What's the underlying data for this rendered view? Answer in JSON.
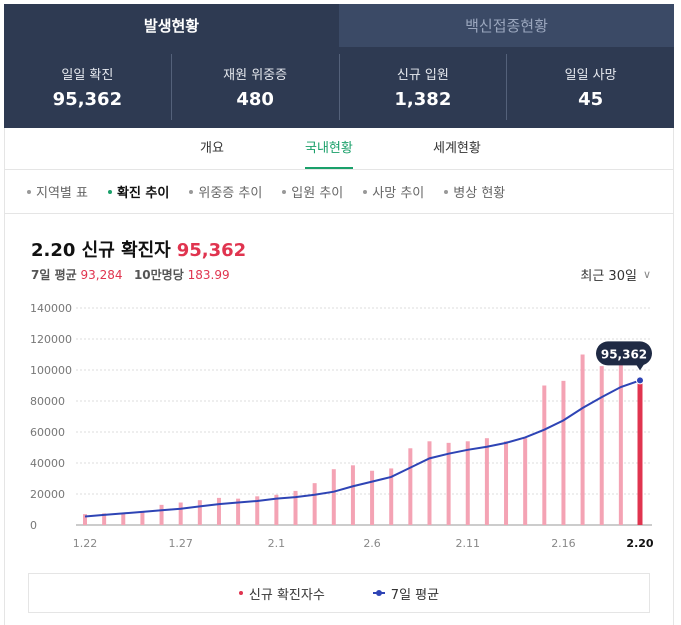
{
  "tabs": {
    "active": "발생현황",
    "inactive": "백신접종현황"
  },
  "stats": [
    {
      "label": "일일 확진",
      "value": "95,362"
    },
    {
      "label": "재원 위중증",
      "value": "480"
    },
    {
      "label": "신규 입원",
      "value": "1,382"
    },
    {
      "label": "일일 사망",
      "value": "45"
    }
  ],
  "subtabs": [
    "개요",
    "국내현황",
    "세계현황"
  ],
  "subtab_active": "국내현황",
  "filters": [
    "지역별 표",
    "확진 추이",
    "위중증 추이",
    "입원 추이",
    "사망 추이",
    "병상 현황"
  ],
  "filter_active": "확진 추이",
  "headline": {
    "title": "2.20 신규 확진자",
    "value": "95,362"
  },
  "subline": {
    "avg_label": "7일 평균",
    "avg_value": "93,284",
    "per_label": "10만명당",
    "per_value": "183.99"
  },
  "period": "최근 30일",
  "tooltip": "95,362",
  "legend": {
    "bar": "신규 확진자수",
    "line": "7일 평균"
  },
  "colors": {
    "bar": "#f4a3b4",
    "bar_last": "#e0344f",
    "line": "#2e44b5",
    "accent_green": "#1aa06a",
    "header_bg": "#2e3a52"
  },
  "chart_data": {
    "type": "bar",
    "dates": [
      "1.22",
      "1.23",
      "1.24",
      "1.25",
      "1.26",
      "1.27",
      "1.28",
      "1.29",
      "1.30",
      "1.31",
      "2.1",
      "2.2",
      "2.3",
      "2.4",
      "2.5",
      "2.6",
      "2.7",
      "2.8",
      "2.9",
      "2.10",
      "2.11",
      "2.12",
      "2.13",
      "2.14",
      "2.15",
      "2.16",
      "2.17",
      "2.18",
      "2.19",
      "2.20"
    ],
    "x_tick_labels": [
      "1.22",
      "1.27",
      "2.1",
      "2.6",
      "2.11",
      "2.16",
      "2.20"
    ],
    "y_ticks": [
      0,
      20000,
      40000,
      60000,
      80000,
      100000,
      120000,
      140000
    ],
    "ylim": [
      0,
      140000
    ],
    "series": [
      {
        "name": "신규 확진자수",
        "type": "bar",
        "values": [
          7000,
          7500,
          7600,
          8500,
          13000,
          14500,
          16000,
          17500,
          17000,
          18500,
          19500,
          22000,
          27000,
          36000,
          38500,
          35000,
          36500,
          49500,
          54000,
          53000,
          54000,
          56000,
          54000,
          56000,
          90000,
          93000,
          110000,
          102500,
          108500,
          95362
        ]
      },
      {
        "name": "7일 평균",
        "type": "line",
        "values": [
          5500,
          6500,
          7500,
          8500,
          9500,
          10500,
          12000,
          13500,
          14500,
          15500,
          17000,
          18000,
          19500,
          21500,
          25000,
          28000,
          31000,
          37000,
          43000,
          46000,
          48500,
          50500,
          53000,
          56500,
          61500,
          67500,
          75500,
          82500,
          89000,
          93284
        ]
      }
    ]
  }
}
